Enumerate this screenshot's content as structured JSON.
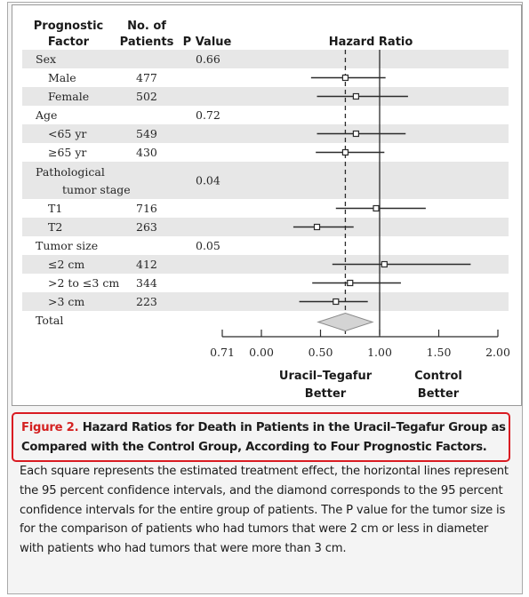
{
  "header": {
    "factor": [
      "Prognostic",
      "Factor"
    ],
    "patients": [
      "No. of",
      "Patients"
    ],
    "pvalue": "P Value",
    "hr": "Hazard Ratio"
  },
  "rows": [
    {
      "label": "Sex",
      "indent": 0,
      "p": "0.66"
    },
    {
      "label": "Male",
      "indent": 1,
      "n": "477"
    },
    {
      "label": "Female",
      "indent": 1,
      "n": "502"
    },
    {
      "label": "Age",
      "indent": 0,
      "p": "0.72"
    },
    {
      "label": "<65 yr",
      "indent": 1,
      "n": "549"
    },
    {
      "label": "≥65 yr",
      "indent": 1,
      "n": "430"
    },
    {
      "label": "Pathological",
      "label2": "tumor stage",
      "indent": 0,
      "p": "0.04"
    },
    {
      "label": "T1",
      "indent": 1,
      "n": "716"
    },
    {
      "label": "T2",
      "indent": 1,
      "n": "263"
    },
    {
      "label": "Tumor size",
      "indent": 0,
      "p": "0.05"
    },
    {
      "label": "≤2 cm",
      "indent": 1,
      "n": "412"
    },
    {
      "label": ">2 to ≤3 cm",
      "indent": 1,
      "n": "344"
    },
    {
      "label": ">3 cm",
      "indent": 1,
      "n": "223"
    },
    {
      "label": "Total",
      "indent": 0
    }
  ],
  "chart_data": {
    "type": "forest",
    "xlabel_left": [
      "Uracil–Tegafur",
      "Better"
    ],
    "xlabel_right": [
      "Control",
      "Better"
    ],
    "xlim": [
      0,
      2
    ],
    "xticks": [
      "0.00",
      "0.50",
      "1.00",
      "1.50",
      "2.00"
    ],
    "xtick_values": [
      0,
      0.5,
      1,
      1.5,
      2
    ],
    "axis_break_label": "0.71",
    "null_line": 1.0,
    "overall_line": 0.71,
    "estimates": [
      {
        "row": 1,
        "hr": 0.71,
        "lo": 0.42,
        "hi": 1.05
      },
      {
        "row": 2,
        "hr": 0.8,
        "lo": 0.47,
        "hi": 1.24
      },
      {
        "row": 4,
        "hr": 0.8,
        "lo": 0.47,
        "hi": 1.22
      },
      {
        "row": 5,
        "hr": 0.71,
        "lo": 0.46,
        "hi": 1.04
      },
      {
        "row": 7,
        "hr": 0.97,
        "lo": 0.63,
        "hi": 1.39
      },
      {
        "row": 8,
        "hr": 0.47,
        "lo": 0.27,
        "hi": 0.78
      },
      {
        "row": 10,
        "hr": 1.04,
        "lo": 0.6,
        "hi": 1.77
      },
      {
        "row": 11,
        "hr": 0.75,
        "lo": 0.43,
        "hi": 1.18
      },
      {
        "row": 12,
        "hr": 0.63,
        "lo": 0.32,
        "hi": 0.9
      }
    ],
    "overall": {
      "row": 13,
      "hr": 0.71,
      "lo": 0.48,
      "hi": 0.94
    }
  },
  "caption": {
    "label": "Figure 2.",
    "title": "Hazard Ratios for Death in Patients in the Uracil–Tegafur Group as Compared with the Control Group, According to Four Prognostic Factors.",
    "body": "Each square represents the estimated treatment effect, the horizontal lines represent the 95 percent confidence intervals, and the diamond corresponds to the 95 percent confidence intervals for the entire group of patients. The P value for the tumor size is for the comparison of patients who had tumors that were 2 cm or less in diameter with patients who had tumors that were more than 3 cm."
  },
  "colors": {
    "stripe": "#e7e7e7",
    "ink": "#2b2b2b",
    "diamond": "#d4d4d4",
    "accent": "#d42121"
  }
}
